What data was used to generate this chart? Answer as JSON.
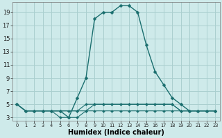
{
  "xlabel": "Humidex (Indice chaleur)",
  "background_color": "#ceeaea",
  "grid_color": "#aacfcf",
  "line_color": "#1a6e6e",
  "xlim": [
    -0.5,
    23.5
  ],
  "ylim": [
    2.5,
    20.5
  ],
  "yticks": [
    3,
    5,
    7,
    9,
    11,
    13,
    15,
    17,
    19
  ],
  "xticks": [
    0,
    1,
    2,
    3,
    4,
    5,
    6,
    7,
    8,
    9,
    10,
    11,
    12,
    13,
    14,
    15,
    16,
    17,
    18,
    19,
    20,
    21,
    22,
    23
  ],
  "xtick_labels": [
    "0",
    "1",
    "2",
    "3",
    "4",
    "5",
    "6",
    "7",
    "8",
    "9",
    "10",
    "11",
    "12",
    "13",
    "14",
    "15",
    "16",
    "17",
    "18",
    "19",
    "20",
    "21",
    "22",
    "23"
  ],
  "series": [
    [
      5,
      4,
      4,
      4,
      4,
      4,
      3,
      6,
      9,
      18,
      19,
      19,
      20,
      20,
      19,
      14,
      10,
      8,
      6,
      5,
      4,
      4,
      4,
      4
    ],
    [
      5,
      4,
      4,
      4,
      4,
      4,
      4,
      4,
      5,
      5,
      5,
      5,
      5,
      5,
      5,
      5,
      5,
      5,
      5,
      4,
      4,
      4,
      4,
      4
    ],
    [
      5,
      4,
      4,
      4,
      4,
      4,
      4,
      4,
      4,
      5,
      5,
      5,
      5,
      5,
      5,
      5,
      5,
      5,
      5,
      4,
      4,
      4,
      4,
      4
    ],
    [
      5,
      4,
      4,
      4,
      4,
      3,
      3,
      3,
      4,
      4,
      4,
      4,
      4,
      4,
      4,
      4,
      4,
      4,
      4,
      4,
      4,
      4,
      4,
      4
    ]
  ],
  "series_styles": [
    {
      "lw": 1.0,
      "ms": 2.5,
      "ls": "-"
    },
    {
      "lw": 0.8,
      "ms": 2.0,
      "ls": "-"
    },
    {
      "lw": 0.8,
      "ms": 2.0,
      "ls": "-"
    },
    {
      "lw": 0.8,
      "ms": 2.0,
      "ls": "-"
    }
  ]
}
